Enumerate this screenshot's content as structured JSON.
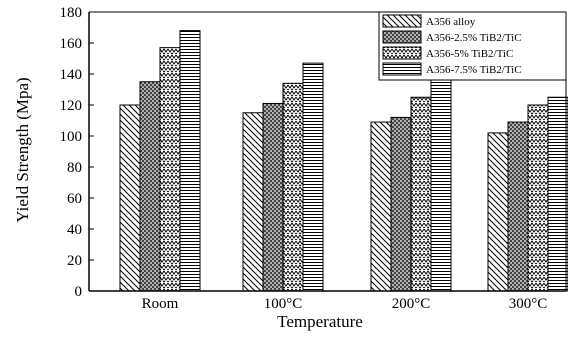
{
  "chart_data": {
    "type": "bar",
    "xlabel": "Temperature",
    "ylabel": "Yield Strength (Mpa)",
    "categories": [
      "Room",
      "100°C",
      "200°C",
      "300°C"
    ],
    "ylim": [
      0,
      180
    ],
    "yticks": [
      0,
      20,
      40,
      60,
      80,
      100,
      120,
      140,
      160,
      180
    ],
    "legend_position": "top-right",
    "grid": false,
    "series": [
      {
        "name": "A356 alloy",
        "values": [
          120,
          115,
          109,
          102
        ],
        "pattern": "diagonal-back"
      },
      {
        "name": "A356-2.5% TiB2/TiC",
        "values": [
          135,
          121,
          112,
          109
        ],
        "pattern": "dots"
      },
      {
        "name": "A356-5% TiB2/TiC",
        "values": [
          157,
          134,
          125,
          120
        ],
        "pattern": "zigzag"
      },
      {
        "name": "A356-7.5% TiB2/TiC",
        "values": [
          168,
          147,
          138,
          125
        ],
        "pattern": "horizontal"
      }
    ]
  }
}
